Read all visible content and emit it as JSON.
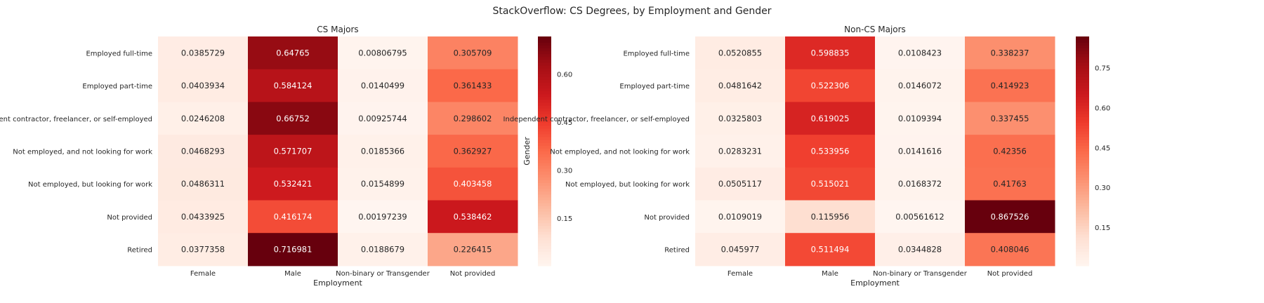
{
  "figure": {
    "title": "StackOverflow: CS Degrees, by Employment and Gender"
  },
  "chart_data": [
    {
      "type": "heatmap",
      "title": "CS Majors",
      "xlabel": "Employment",
      "ylabel": "Gender",
      "x_categories": [
        "Female",
        "Male",
        "Non-binary or Transgender",
        "Not provided"
      ],
      "y_categories": [
        "Employed full-time",
        "Employed part-time",
        "Independent contractor, freelancer, or self-employed",
        "Not employed, and not looking for work",
        "Not employed, but looking for work",
        "Not provided",
        "Retired"
      ],
      "values": [
        [
          "0.0385729",
          "0.64765",
          "0.00806795",
          "0.305709"
        ],
        [
          "0.0403934",
          "0.584124",
          "0.0140499",
          "0.361433"
        ],
        [
          "0.0246208",
          "0.66752",
          "0.00925744",
          "0.298602"
        ],
        [
          "0.0468293",
          "0.571707",
          "0.0185366",
          "0.362927"
        ],
        [
          "0.0486311",
          "0.532421",
          "0.0154899",
          "0.403458"
        ],
        [
          "0.0433925",
          "0.416174",
          "0.00197239",
          "0.538462"
        ],
        [
          "0.0377358",
          "0.716981",
          "0.0188679",
          "0.226415"
        ]
      ],
      "colormap": "Reds",
      "colorbar": {
        "vmin": 0.00197239,
        "vmax": 0.716981,
        "ticks": [
          "0.15",
          "0.30",
          "0.45",
          "0.60"
        ]
      }
    },
    {
      "type": "heatmap",
      "title": "Non-CS Majors",
      "xlabel": "Employment",
      "ylabel": "",
      "x_categories": [
        "Female",
        "Male",
        "Non-binary or Transgender",
        "Not provided"
      ],
      "y_categories": [
        "Employed full-time",
        "Employed part-time",
        "Independent contractor, freelancer, or self-employed",
        "Not employed, and not looking for work",
        "Not employed, but looking for work",
        "Not provided",
        "Retired"
      ],
      "values": [
        [
          "0.0520855",
          "0.598835",
          "0.0108423",
          "0.338237"
        ],
        [
          "0.0481642",
          "0.522306",
          "0.0146072",
          "0.414923"
        ],
        [
          "0.0325803",
          "0.619025",
          "0.0109394",
          "0.337455"
        ],
        [
          "0.0283231",
          "0.533956",
          "0.0141616",
          "0.42356"
        ],
        [
          "0.0505117",
          "0.515021",
          "0.0168372",
          "0.41763"
        ],
        [
          "0.0109019",
          "0.115956",
          "0.00561612",
          "0.867526"
        ],
        [
          "0.045977",
          "0.511494",
          "0.0344828",
          "0.408046"
        ]
      ],
      "colormap": "Reds",
      "colorbar": {
        "vmin": 0.00561612,
        "vmax": 0.867526,
        "ticks": [
          "0.15",
          "0.30",
          "0.45",
          "0.60",
          "0.75"
        ]
      }
    }
  ]
}
